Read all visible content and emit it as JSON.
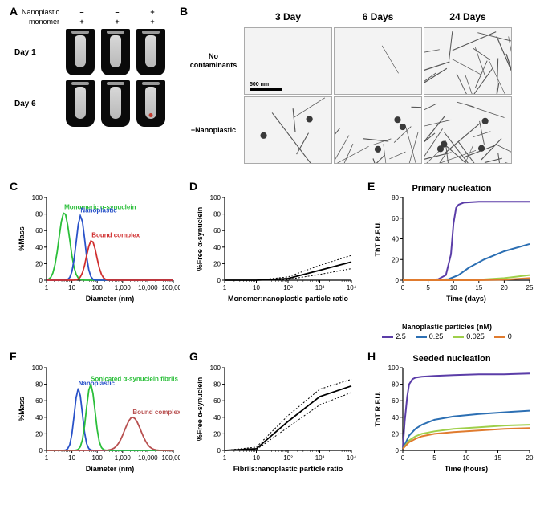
{
  "panelA": {
    "label": "A",
    "rows": [
      "Nanoplastic",
      "monomer"
    ],
    "conds": [
      [
        "–",
        "+"
      ],
      [
        "–",
        "+"
      ],
      [
        "+",
        "+"
      ]
    ],
    "timepoints": [
      "Day 1",
      "Day 6"
    ],
    "pellet": [
      [
        false,
        false,
        false
      ],
      [
        false,
        false,
        true
      ]
    ]
  },
  "panelB": {
    "label": "B",
    "columns": [
      "3 Day",
      "6 Days",
      "24  Days"
    ],
    "rows": [
      "No contaminants",
      "+Nanoplastic"
    ],
    "scalebar": "500 nm",
    "fibril_density": [
      [
        0,
        0.05,
        0.7
      ],
      [
        0.15,
        0.5,
        0.9
      ]
    ]
  },
  "panelC": {
    "label": "C",
    "xlabel": "Diameter (nm)",
    "ylabel": "%Mass",
    "xlog": true,
    "xlim": [
      1,
      100000
    ],
    "ylim": [
      0,
      100
    ],
    "series": [
      {
        "name": "Monomeric α-synuclein",
        "color": "#2bbf3a",
        "peak_x": 5,
        "peak_y": 82,
        "width": 0.3
      },
      {
        "name": "Nanoplastic",
        "color": "#2952c9",
        "peak_x": 22,
        "peak_y": 78,
        "width": 0.24
      },
      {
        "name": "Bound complex",
        "color": "#d02f2f",
        "peak_x": 60,
        "peak_y": 48,
        "width": 0.28
      }
    ],
    "axis": {
      "tick_fontsize": 8,
      "label_fontsize": 9,
      "stroke": "#000"
    }
  },
  "panelD": {
    "label": "D",
    "xlabel": "Monomer:nanoplastic particle ratio",
    "ylabel": "%Free α-synuclein",
    "xlog": true,
    "xlim": [
      1,
      10000
    ],
    "ylim": [
      0,
      100
    ],
    "x": [
      1,
      10,
      100,
      1000,
      10000
    ],
    "y_mean": [
      0,
      0,
      2,
      12,
      22
    ],
    "y_lo": [
      0,
      0,
      1,
      7,
      14
    ],
    "y_hi": [
      0,
      0,
      4,
      18,
      30
    ],
    "mean_color": "#000",
    "band_color": "#000",
    "band_dash": "2,2",
    "axis": {
      "tick_fontsize": 8,
      "label_fontsize": 9,
      "stroke": "#000"
    }
  },
  "panelE": {
    "label": "E",
    "title": "Primary nucleation",
    "xlabel": "Time (days)",
    "ylabel": "ThT R.F.U.",
    "xlim": [
      0,
      25
    ],
    "ylim": [
      0,
      80
    ],
    "xtick_step": 5,
    "ytick_step": 20,
    "series": [
      {
        "conc": "2.5",
        "color": "#5b3da8",
        "x": [
          0,
          5,
          7,
          8.5,
          9.5,
          10,
          10.5,
          11,
          12,
          15,
          20,
          25
        ],
        "y": [
          0,
          0,
          1,
          5,
          25,
          55,
          70,
          73,
          75,
          76,
          76,
          76
        ]
      },
      {
        "conc": "0.25",
        "color": "#2c6fb3",
        "x": [
          0,
          5,
          9,
          11,
          13,
          16,
          20,
          25
        ],
        "y": [
          0,
          0,
          1,
          5,
          12,
          20,
          28,
          35
        ]
      },
      {
        "conc": "0.025",
        "color": "#9fcf4a",
        "x": [
          0,
          5,
          10,
          15,
          20,
          25
        ],
        "y": [
          0,
          0,
          0,
          0.5,
          2,
          5
        ]
      },
      {
        "conc": "0",
        "color": "#e07b2e",
        "x": [
          0,
          5,
          10,
          15,
          20,
          25
        ],
        "y": [
          0,
          0,
          0,
          0,
          0.5,
          2
        ]
      }
    ],
    "axis": {
      "tick_fontsize": 8,
      "label_fontsize": 9,
      "stroke": "#000"
    }
  },
  "panelF": {
    "label": "F",
    "xlabel": "Diameter (nm)",
    "ylabel": "%Mass",
    "xlog": true,
    "xlim": [
      1,
      100000
    ],
    "ylim": [
      0,
      100
    ],
    "series": [
      {
        "name": "Nanoplastic",
        "color": "#2952c9",
        "peak_x": 18,
        "peak_y": 75,
        "width": 0.22
      },
      {
        "name": "Sonicated α-synuclein fibrils",
        "color": "#2bbf3a",
        "peak_x": 55,
        "peak_y": 80,
        "width": 0.24
      },
      {
        "name": "Bound complex",
        "color": "#b85050",
        "peak_x": 2500,
        "peak_y": 40,
        "width": 0.45
      }
    ],
    "axis": {
      "tick_fontsize": 8,
      "label_fontsize": 9,
      "stroke": "#000"
    }
  },
  "panelG": {
    "label": "G",
    "xlabel": "Fibrils:nanoplastic particle ratio",
    "ylabel": "%Free α-synuclein",
    "xlog": true,
    "xlim": [
      1,
      10000
    ],
    "ylim": [
      0,
      100
    ],
    "x": [
      1,
      10,
      100,
      1000,
      10000
    ],
    "y_mean": [
      0,
      2,
      35,
      65,
      78
    ],
    "y_lo": [
      0,
      1,
      28,
      55,
      70
    ],
    "y_hi": [
      0,
      4,
      42,
      74,
      86
    ],
    "mean_color": "#000",
    "band_color": "#000",
    "band_dash": "2,2",
    "axis": {
      "tick_fontsize": 8,
      "label_fontsize": 9,
      "stroke": "#000"
    }
  },
  "panelH": {
    "label": "H",
    "title": "Seeded nucleation",
    "xlabel": "Time (hours)",
    "ylabel": "ThT R.F.U.",
    "xlim": [
      0,
      20
    ],
    "ylim": [
      0,
      100
    ],
    "xtick_step": 5,
    "ytick_step": 20,
    "series": [
      {
        "conc": "2.5",
        "color": "#5b3da8",
        "x": [
          0,
          0.3,
          0.7,
          1,
          1.5,
          2,
          3,
          5,
          8,
          12,
          16,
          20
        ],
        "y": [
          2,
          35,
          65,
          80,
          86,
          88,
          89,
          90,
          91,
          92,
          92,
          93
        ]
      },
      {
        "conc": "0.25",
        "color": "#2c6fb3",
        "x": [
          0,
          1,
          2,
          3,
          5,
          8,
          12,
          16,
          20
        ],
        "y": [
          2,
          18,
          26,
          31,
          37,
          41,
          44,
          46,
          48
        ]
      },
      {
        "conc": "0.025",
        "color": "#9fcf4a",
        "x": [
          0,
          1,
          2,
          3,
          5,
          8,
          12,
          16,
          20
        ],
        "y": [
          2,
          12,
          17,
          20,
          23,
          26,
          28,
          30,
          31
        ]
      },
      {
        "conc": "0",
        "color": "#e07b2e",
        "x": [
          0,
          1,
          2,
          3,
          5,
          8,
          12,
          16,
          20
        ],
        "y": [
          2,
          10,
          14,
          17,
          20,
          22,
          24,
          26,
          27
        ]
      }
    ],
    "axis": {
      "tick_fontsize": 8,
      "label_fontsize": 9,
      "stroke": "#000"
    }
  },
  "legendEH": {
    "title": "Nanoplastic particles (nM)",
    "items": [
      {
        "label": "2.5",
        "color": "#5b3da8"
      },
      {
        "label": "0.25",
        "color": "#2c6fb3"
      },
      {
        "label": "0.025",
        "color": "#9fcf4a"
      },
      {
        "label": "0",
        "color": "#e07b2e"
      }
    ]
  }
}
